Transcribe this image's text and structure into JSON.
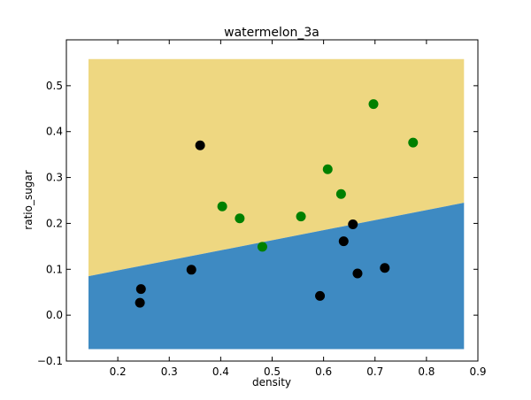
{
  "chart_data": {
    "type": "scatter",
    "title": "watermelon_3a",
    "xlabel": "density",
    "ylabel": "ratio_sugar",
    "xlim": [
      0.1,
      0.9
    ],
    "ylim": [
      -0.1,
      0.6
    ],
    "xticks": [
      0.2,
      0.3,
      0.4,
      0.5,
      0.6,
      0.7,
      0.8,
      0.9
    ],
    "yticks": [
      -0.1,
      0.0,
      0.1,
      0.2,
      0.3,
      0.4,
      0.5
    ],
    "xtick_labels": [
      "0.2",
      "0.3",
      "0.4",
      "0.5",
      "0.6",
      "0.7",
      "0.8",
      "0.9"
    ],
    "ytick_labels": [
      "−0.1",
      "0.0",
      "0.1",
      "0.2",
      "0.3",
      "0.4",
      "0.5"
    ],
    "grid": false,
    "decision_region": {
      "x_range": [
        0.143,
        0.873
      ],
      "y_range": [
        -0.074,
        0.558
      ],
      "boundary_line": [
        [
          0.143,
          0.085
        ],
        [
          0.873,
          0.245
        ]
      ],
      "upper_color": "#eed781",
      "lower_color": "#3e8ac2"
    },
    "series": [
      {
        "color": "#008000",
        "points": [
          [
            0.697,
            0.46
          ],
          [
            0.774,
            0.376
          ],
          [
            0.608,
            0.318
          ],
          [
            0.634,
            0.264
          ],
          [
            0.403,
            0.237
          ],
          [
            0.437,
            0.211
          ],
          [
            0.556,
            0.215
          ],
          [
            0.481,
            0.149
          ]
        ]
      },
      {
        "color": "#000000",
        "points": [
          [
            0.36,
            0.37
          ],
          [
            0.657,
            0.198
          ],
          [
            0.639,
            0.161
          ],
          [
            0.343,
            0.099
          ],
          [
            0.719,
            0.103
          ],
          [
            0.666,
            0.091
          ],
          [
            0.593,
            0.042
          ],
          [
            0.245,
            0.057
          ],
          [
            0.243,
            0.027
          ]
        ]
      }
    ]
  }
}
